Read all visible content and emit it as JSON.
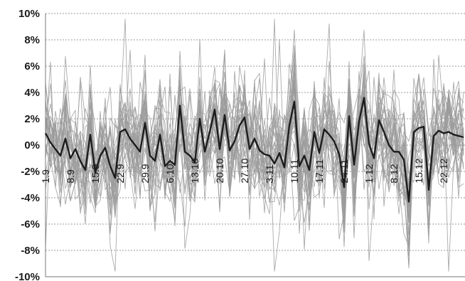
{
  "chart_data": {
    "type": "line",
    "title": "",
    "xlabel": "",
    "ylabel": "",
    "ylim": [
      -10,
      10
    ],
    "y_ticks": [
      "10%",
      "8%",
      "6%",
      "4%",
      "2%",
      "0%",
      "-2%",
      "-4%",
      "-6%",
      "-8%",
      "-10%"
    ],
    "x_tick_labels": [
      "1.9",
      "8.9",
      "15.9",
      "22.9",
      "29.9",
      "6.10",
      "13.10",
      "20.10",
      "27.10",
      "3.11",
      "10.11",
      "17.11",
      "24.11",
      "1.12",
      "8.12",
      "15.12",
      "22.12"
    ],
    "x_tick_positions": [
      0,
      5,
      10,
      15,
      20,
      25,
      30,
      35,
      40,
      45,
      50,
      55,
      60,
      65,
      70,
      75,
      80
    ],
    "grid": true,
    "colors": {
      "series_thin": "#9b9b9b",
      "series_bold": "#1c1c1c",
      "grid": "#9a9a9a"
    },
    "series": [
      {
        "style": "bold",
        "x": [
          0,
          1,
          2,
          3,
          4,
          5,
          6,
          7,
          8,
          9,
          10,
          11,
          12,
          13,
          14,
          15,
          16,
          17,
          18,
          19,
          20,
          21,
          22,
          23,
          24,
          25,
          26,
          27,
          28,
          29,
          30,
          31,
          32,
          33,
          34,
          35,
          36,
          37,
          38,
          39,
          40,
          41,
          42,
          43,
          44,
          45,
          46,
          47,
          48,
          49,
          50,
          51,
          52,
          53,
          54,
          55,
          56,
          57,
          58,
          59,
          60,
          61,
          62,
          63,
          64,
          65,
          66,
          67,
          68,
          69,
          70,
          71,
          72,
          73,
          74,
          75,
          76,
          77,
          78,
          79,
          80,
          81,
          82,
          83,
          84
        ],
        "values": [
          0.9,
          0.2,
          -0.3,
          -0.8,
          0.5,
          -1.0,
          -0.3,
          -1.2,
          -1.9,
          0.8,
          -2.1,
          -0.8,
          -0.2,
          -1.6,
          -2.5,
          1.0,
          1.2,
          0.5,
          0.0,
          -0.5,
          1.7,
          -0.8,
          -1.2,
          0.8,
          -1.6,
          -1.2,
          -1.5,
          3.0,
          -0.5,
          -0.8,
          -1.3,
          2.0,
          -0.5,
          1.0,
          2.7,
          -0.3,
          2.3,
          -0.4,
          0.3,
          1.5,
          2.1,
          -0.3,
          0.5,
          -0.4,
          -0.7,
          -0.8,
          -1.4,
          -0.6,
          -1.7,
          1.5,
          3.3,
          -1.6,
          -0.8,
          -1.9,
          1.0,
          -0.6,
          1.2,
          0.8,
          0.3,
          -0.7,
          -3.2,
          2.2,
          -1.5,
          1.8,
          3.6,
          0.1,
          -1.0,
          1.9,
          1.0,
          0.0,
          -0.5,
          -0.5,
          -1.1,
          -4.3,
          1.0,
          1.3,
          1.4,
          -3.4,
          0.7,
          1.1,
          0.9,
          1.0,
          0.8,
          0.7,
          0.6
        ]
      }
    ]
  }
}
